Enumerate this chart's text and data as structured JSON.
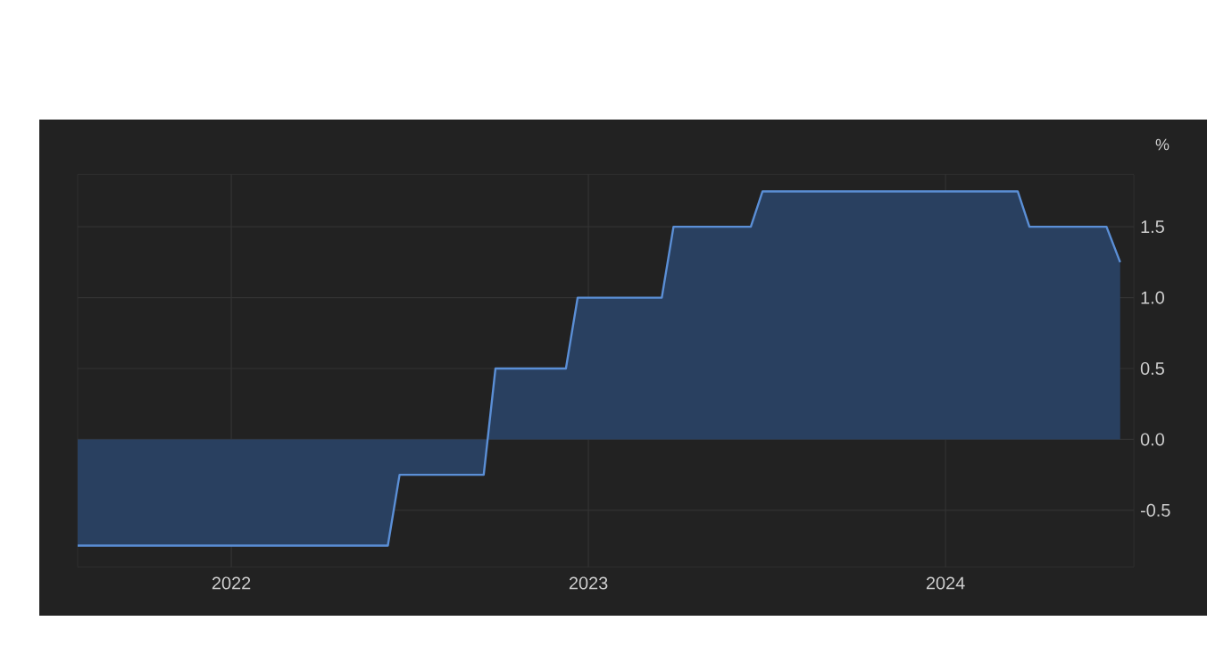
{
  "chart_data": {
    "type": "area",
    "ylabel": "%",
    "x": [
      "2021-07-28",
      "2022-06-10",
      "2022-06-22",
      "2022-09-16",
      "2022-09-28",
      "2022-12-09",
      "2022-12-21",
      "2023-03-17",
      "2023-03-29",
      "2023-06-16",
      "2023-06-28",
      "2024-03-15",
      "2024-03-27",
      "2024-06-14",
      "2024-06-28"
    ],
    "values": [
      -0.75,
      -0.75,
      -0.25,
      -0.25,
      0.5,
      0.5,
      1.0,
      1.0,
      1.5,
      1.5,
      1.75,
      1.75,
      1.5,
      1.5,
      1.25
    ],
    "color": "#5b8fd6",
    "xlim": [
      "2021-07-28",
      "2024-07-12"
    ],
    "ylim": [
      -0.9,
      1.87
    ],
    "xticks": [
      "2022",
      "2023",
      "2024"
    ],
    "yticks": [
      {
        "value": -0.5,
        "label": "-0.5"
      },
      {
        "value": 0,
        "label": "0.0"
      },
      {
        "value": 0.5,
        "label": "0.5"
      },
      {
        "value": 1,
        "label": "1.0"
      },
      {
        "value": 1.5,
        "label": "1.5"
      }
    ],
    "grid": true
  }
}
